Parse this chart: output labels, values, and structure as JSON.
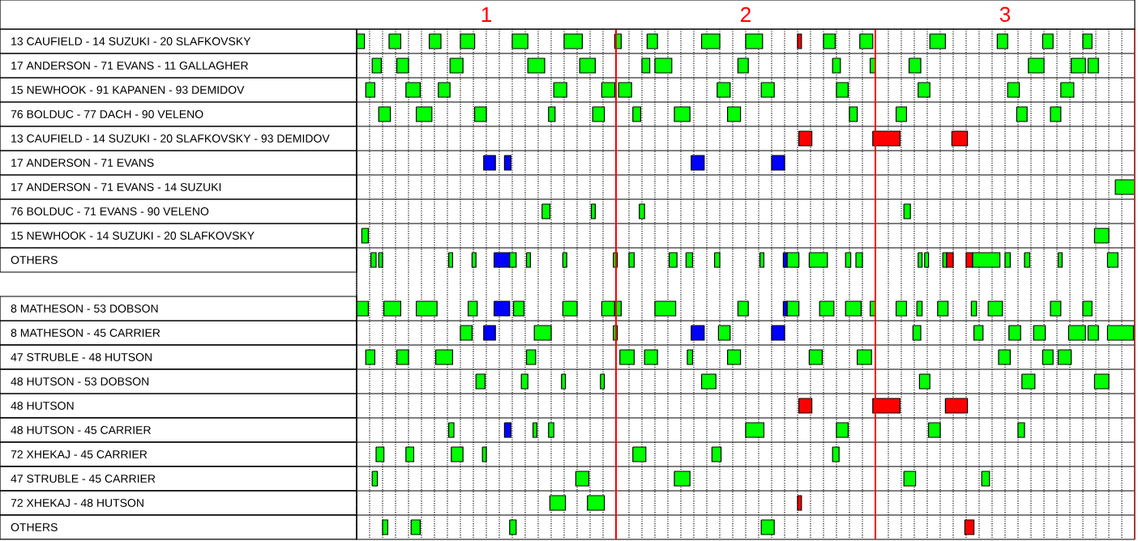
{
  "chart_data": {
    "type": "bar",
    "orientation": "horizontal",
    "grid": "x",
    "xlim": [
      0.5,
      3.5
    ],
    "categories": [
      "13 CAUFIELD - 14 SUZUKI - 20 SLAFKOVSKY",
      "17 ANDERSON - 71 EVANS - 11 GALLAGHER",
      "15 NEWHOOK - 91 KAPANEN - 93 DEMIDOV",
      "76 BOLDUC - 77 DACH - 90 VELENO",
      "13 CAUFIELD - 14 SUZUKI - 20 SLAFKOVSKY - 93 DEMIDOV",
      "17 ANDERSON - 71 EVANS",
      "17 ANDERSON - 71 EVANS - 14 SUZUKI",
      "76 BOLDUC - 71 EVANS - 90 VELENO",
      "15 NEWHOOK - 14 SUZUKI - 20 SLAFKOVSKY",
      "OTHERS",
      null,
      "8 MATHESON - 53 DOBSON",
      "8 MATHESON - 45 CARRIER",
      "47 STRUBLE - 48 HUTSON",
      "48 HUTSON - 53 DOBSON",
      "48 HUTSON",
      "48 HUTSON - 45 CARRIER",
      "72 XHEKAJ - 45 CARRIER",
      "47 STRUBLE - 45 CARRIER",
      "72 XHEKAJ - 48 HUTSON",
      "OTHERS"
    ],
    "xticks": [
      {
        "value": 0.5,
        "label": null
      },
      {
        "value": 0.55,
        "label": null
      },
      {
        "value": 0.6,
        "label": null
      },
      {
        "value": 0.65,
        "label": null
      },
      {
        "value": 0.7,
        "label": null
      },
      {
        "value": 0.75,
        "label": null
      },
      {
        "value": 0.8,
        "label": null
      },
      {
        "value": 0.85,
        "label": null
      },
      {
        "value": 0.9,
        "label": null
      },
      {
        "value": 0.95,
        "label": null
      },
      1,
      {
        "value": 1.05,
        "label": null
      },
      {
        "value": 1.1,
        "label": null
      },
      {
        "value": 1.15,
        "label": null
      },
      {
        "value": 1.2,
        "label": null
      },
      {
        "value": 1.25,
        "label": null
      },
      {
        "value": 1.3,
        "label": null
      },
      {
        "value": 1.35,
        "label": null
      },
      {
        "value": 1.4,
        "label": null
      },
      {
        "value": 1.45,
        "label": null
      },
      {
        "value": 1.55,
        "label": null
      },
      {
        "value": 1.6,
        "label": null
      },
      {
        "value": 1.65,
        "label": null
      },
      {
        "value": 1.7,
        "label": null
      },
      {
        "value": 1.75,
        "label": null
      },
      {
        "value": 1.8,
        "label": null
      },
      {
        "value": 1.85,
        "label": null
      },
      {
        "value": 1.9,
        "label": null
      },
      {
        "value": 1.95,
        "label": null
      },
      2,
      {
        "value": 2.05,
        "label": null
      },
      {
        "value": 2.1,
        "label": null
      },
      {
        "value": 2.15,
        "label": null
      },
      {
        "value": 2.2,
        "label": null
      },
      {
        "value": 2.25,
        "label": null
      },
      {
        "value": 2.3,
        "label": null
      },
      {
        "value": 2.35,
        "label": null
      },
      {
        "value": 2.4,
        "label": null
      },
      {
        "value": 2.45,
        "label": null
      },
      {
        "value": 2.55,
        "label": null
      },
      {
        "value": 2.6,
        "label": null
      },
      {
        "value": 2.65,
        "label": null
      },
      {
        "value": 2.7,
        "label": null
      },
      {
        "value": 2.75,
        "label": null
      },
      {
        "value": 2.8,
        "label": null
      },
      {
        "value": 2.85,
        "label": null
      },
      {
        "value": 2.9,
        "label": null
      },
      {
        "value": 2.95,
        "label": null
      },
      3,
      {
        "value": 3.05,
        "label": null
      },
      {
        "value": 3.1,
        "label": null
      },
      {
        "value": 3.15,
        "label": null
      },
      {
        "value": 3.2,
        "label": null
      },
      {
        "value": 3.25,
        "label": null
      },
      {
        "value": 3.3,
        "label": null
      },
      {
        "value": 3.35,
        "label": null
      },
      {
        "value": 3.4,
        "label": null
      },
      {
        "value": 3.45,
        "label": null
      }
    ],
    "ref_lines": [
      {
        "axis": "x",
        "value": 1.5,
        "color": "#ff0000"
      },
      {
        "axis": "x",
        "value": 2.5,
        "color": "#ff0000"
      },
      {
        "axis": "x",
        "value": 3.5,
        "color": "#ff0000"
      }
    ],
    "series": [
      {
        "values": [
          0.03,
          0.035,
          0.035,
          0.045,
          0.05,
          0.045,
          0.075,
          0.03,
          0.025,
          0.02,
          null,
          0.045,
          0.045,
          0.035,
          0.035,
          0.05,
          0.02,
          0.03,
          0.02,
          0.06,
          0.02
        ],
        "base": [
          0.5,
          0.56,
          0.535,
          0.585,
          2.205,
          0.99,
          3.425,
          1.215,
          0.52,
          0.555,
          null,
          0.5,
          0.9,
          0.535,
          0.96,
          2.205,
          0.855,
          0.575,
          0.56,
          1.245,
          0.6
        ],
        "colors": [
          "#00ff00",
          "#00ff00",
          "#00ff00",
          "#00ff00",
          "#ff0000",
          "#0000ff",
          "#00ff00",
          "#00ff00",
          "#00ff00",
          "#00ff00",
          null,
          "#00ff00",
          "#00ff00",
          "#00ff00",
          "#00ff00",
          "#ff0000",
          "#00ff00",
          "#00ff00",
          "#00ff00",
          "#00ff00",
          "#00ff00"
        ]
      },
      {
        "values": [
          0.045,
          0.045,
          0.055,
          0.06,
          0.105,
          0.025,
          null,
          0.015,
          0.055,
          0.015,
          null,
          0.065,
          0.045,
          0.045,
          0.025,
          0.105,
          0.025,
          0.03,
          0.05,
          0.065,
          0.035
        ],
        "base": [
          0.625,
          0.655,
          0.69,
          0.73,
          2.49,
          1.07,
          null,
          1.405,
          3.345,
          0.585,
          null,
          0.605,
          0.99,
          0.655,
          1.135,
          2.49,
          1.07,
          0.69,
          1.345,
          1.39,
          0.71
        ],
        "colors": [
          "#00ff00",
          "#00ff00",
          "#00ff00",
          "#00ff00",
          "#ff0000",
          "#0000ff",
          null,
          "#00ff00",
          "#00ff00",
          "#00ff00",
          null,
          "#00ff00",
          "#0000ff",
          "#00ff00",
          "#00ff00",
          "#ff0000",
          "#0000ff",
          "#00ff00",
          "#00ff00",
          "#00ff00",
          "#00ff00"
        ]
      },
      {
        "values": [
          0.045,
          0.05,
          0.045,
          0.045,
          0.06,
          0.05,
          null,
          0.02,
          null,
          0.015,
          null,
          0.08,
          0.065,
          0.065,
          0.015,
          0.085,
          0.015,
          0.045,
          0.06,
          0.015,
          0.025
        ],
        "base": [
          0.78,
          0.86,
          0.815,
          0.955,
          2.795,
          1.79,
          null,
          1.59,
          null,
          0.855,
          null,
          0.73,
          1.185,
          0.805,
          1.29,
          2.77,
          1.18,
          0.865,
          1.725,
          2.2,
          1.09
        ],
        "colors": [
          "#00ff00",
          "#00ff00",
          "#00ff00",
          "#00ff00",
          "#ff0000",
          "#0000ff",
          null,
          "#00ff00",
          null,
          "#00ff00",
          null,
          "#00ff00",
          "#00ff00",
          "#00ff00",
          "#00ff00",
          "#ff0000",
          "#00ff00",
          "#00ff00",
          "#00ff00",
          "#ff0000",
          "#00ff00"
        ]
      },
      {
        "values": [
          0.055,
          0.065,
          0.05,
          0.025,
          null,
          0.05,
          null,
          0.025,
          null,
          0.015,
          null,
          0.035,
          0.015,
          0.035,
          0.015,
          null,
          0.02,
          0.015,
          0.045,
          null,
          0.05
        ],
        "base": [
          0.9,
          1.16,
          1.26,
          1.24,
          null,
          2.1,
          null,
          2.61,
          null,
          0.945,
          null,
          0.93,
          1.49,
          1.155,
          1.44,
          null,
          1.24,
          0.985,
          2.61,
          null,
          2.06
        ],
        "colors": [
          "#00ff00",
          "#00ff00",
          "#00ff00",
          "#00ff00",
          null,
          "#0000ff",
          null,
          "#00ff00",
          null,
          "#00ff00",
          null,
          "#00ff00",
          "#00ff00",
          "#00ff00",
          "#00ff00",
          null,
          "#00ff00",
          "#00ff00",
          "#00ff00",
          null,
          "#00ff00"
        ]
      },
      {
        "values": [
          0.06,
          0.06,
          0.05,
          0.045,
          null,
          null,
          null,
          null,
          null,
          0.06,
          null,
          0.06,
          0.05,
          0.055,
          0.055,
          null,
          0.07,
          0.05,
          0.03,
          null,
          0.035
        ],
        "base": [
          1.1,
          1.36,
          1.445,
          1.41,
          null,
          null,
          null,
          null,
          null,
          1.03,
          null,
          1.03,
          1.79,
          1.515,
          1.83,
          null,
          2.0,
          1.565,
          2.91,
          null,
          2.845
        ],
        "colors": [
          "#00ff00",
          "#00ff00",
          "#00ff00",
          "#00ff00",
          null,
          null,
          null,
          null,
          null,
          "#0000ff",
          null,
          "#0000ff",
          "#0000ff",
          "#00ff00",
          "#00ff00",
          null,
          "#00ff00",
          "#00ff00",
          "#00ff00",
          null,
          "#ff0000"
        ]
      },
      {
        "values": [
          0.07,
          0.03,
          0.05,
          0.03,
          null,
          null,
          null,
          null,
          null,
          0.025,
          null,
          0.04,
          0.045,
          0.05,
          0.04,
          null,
          0.045,
          0.035,
          null,
          null,
          null
        ],
        "base": [
          1.3,
          1.6,
          1.51,
          1.565,
          null,
          null,
          null,
          null,
          null,
          1.09,
          null,
          1.105,
          1.895,
          1.61,
          2.67,
          null,
          2.35,
          1.87,
          null,
          null,
          null
        ],
        "colors": [
          "#00ff00",
          "#00ff00",
          "#00ff00",
          "#00ff00",
          null,
          null,
          null,
          null,
          null,
          "#00ff00",
          null,
          "#00ff00",
          "#00ff00",
          "#00ff00",
          "#00ff00",
          null,
          "#00ff00",
          "#00ff00",
          null,
          null,
          null
        ]
      },
      {
        "values": [
          0.025,
          0.065,
          0.05,
          0.06,
          null,
          null,
          null,
          null,
          null,
          0.015,
          null,
          0.055,
          0.05,
          0.02,
          0.05,
          null,
          0.045,
          0.025,
          null,
          null,
          null
        ],
        "base": [
          1.495,
          1.65,
          1.89,
          1.725,
          null,
          null,
          null,
          null,
          null,
          1.155,
          null,
          1.295,
          2.1,
          1.775,
          3.065,
          null,
          2.705,
          2.335,
          null,
          null,
          null
        ],
        "colors": [
          "#00ff00",
          "#00ff00",
          "#00ff00",
          "#00ff00",
          null,
          null,
          null,
          null,
          null,
          "#00ff00",
          null,
          "#00ff00",
          "#0000ff",
          "#00ff00",
          "#00ff00",
          null,
          "#00ff00",
          "#00ff00",
          null,
          null,
          null
        ]
      },
      {
        "values": [
          0.04,
          0.04,
          0.05,
          0.05,
          null,
          null,
          null,
          null,
          null,
          0.015,
          null,
          0.05,
          0.03,
          0.05,
          0.055,
          null,
          0.025,
          null,
          null,
          null,
          null
        ],
        "base": [
          1.62,
          1.97,
          2.06,
          1.93,
          null,
          null,
          null,
          null,
          null,
          1.295,
          null,
          1.445,
          2.645,
          1.93,
          3.345,
          null,
          3.05,
          null,
          null,
          null,
          null
        ],
        "colors": [
          "#00ff00",
          "#00ff00",
          "#00ff00",
          "#00ff00",
          null,
          null,
          null,
          null,
          null,
          "#00ff00",
          null,
          "#00ff00",
          "#00ff00",
          "#00ff00",
          "#00ff00",
          null,
          "#00ff00",
          null,
          null,
          null,
          null
        ]
      },
      {
        "values": [
          0.07,
          0.03,
          0.045,
          0.03,
          null,
          null,
          null,
          null,
          null,
          0.015,
          null,
          0.025,
          0.035,
          0.05,
          null,
          null,
          null,
          null,
          null,
          null,
          null
        ],
        "base": [
          1.83,
          2.335,
          2.35,
          2.4,
          null,
          null,
          null,
          null,
          null,
          1.49,
          null,
          1.495,
          2.88,
          2.245,
          null,
          null,
          null,
          null,
          null,
          null,
          null
        ],
        "colors": [
          "#00ff00",
          "#00ff00",
          "#00ff00",
          "#00ff00",
          null,
          null,
          null,
          null,
          null,
          "#00ff00",
          null,
          "#00ff00",
          "#00ff00",
          "#00ff00",
          null,
          null,
          null,
          null,
          null,
          null,
          null
        ]
      },
      {
        "values": [
          0.065,
          0.02,
          0.045,
          0.04,
          null,
          null,
          null,
          null,
          null,
          0.02,
          null,
          0.08,
          0.045,
          0.055,
          null,
          null,
          null,
          null,
          null,
          null,
          null
        ],
        "base": [
          2.0,
          2.48,
          2.665,
          2.58,
          null,
          null,
          null,
          null,
          null,
          1.55,
          null,
          1.65,
          3.015,
          2.43,
          null,
          null,
          null,
          null,
          null,
          null,
          null
        ],
        "colors": [
          "#00ff00",
          "#00ff00",
          "#00ff00",
          "#00ff00",
          null,
          null,
          null,
          null,
          null,
          "#00ff00",
          null,
          "#00ff00",
          "#00ff00",
          "#00ff00",
          null,
          null,
          null,
          null,
          null,
          null,
          null
        ]
      },
      {
        "values": [
          0.015,
          0.045,
          0.045,
          0.04,
          null,
          null,
          null,
          null,
          null,
          0.03,
          null,
          0.04,
          0.045,
          0.045,
          null,
          null,
          null,
          null,
          null,
          null,
          null
        ],
        "base": [
          2.2,
          2.63,
          3.01,
          3.045,
          null,
          null,
          null,
          null,
          null,
          1.705,
          null,
          1.97,
          3.11,
          2.975,
          null,
          null,
          null,
          null,
          null,
          null,
          null
        ],
        "colors": [
          "#ff0000",
          "#00ff00",
          "#00ff00",
          "#00ff00",
          null,
          null,
          null,
          null,
          null,
          "#00ff00",
          null,
          "#00ff00",
          "#00ff00",
          "#00ff00",
          null,
          null,
          null,
          null,
          null,
          null,
          null
        ]
      },
      {
        "values": [
          0.045,
          0.06,
          0.05,
          0.04,
          null,
          null,
          null,
          null,
          null,
          0.025,
          null,
          0.015,
          0.065,
          0.04,
          null,
          null,
          null,
          null,
          null,
          null,
          null
        ],
        "base": [
          2.3,
          3.09,
          3.215,
          3.175,
          null,
          null,
          null,
          null,
          null,
          1.77,
          null,
          2.145,
          3.245,
          3.145,
          null,
          null,
          null,
          null,
          null,
          null,
          null
        ],
        "colors": [
          "#00ff00",
          "#00ff00",
          "#00ff00",
          "#00ff00",
          null,
          null,
          null,
          null,
          null,
          "#00ff00",
          null,
          "#0000ff",
          "#00ff00",
          "#00ff00",
          null,
          null,
          null,
          null,
          null,
          null,
          null
        ]
      },
      {
        "values": [
          0.05,
          0.055,
          null,
          null,
          null,
          null,
          null,
          null,
          null,
          0.02,
          null,
          0.045,
          0.04,
          0.05,
          null,
          null,
          null,
          null,
          null,
          null,
          null
        ],
        "base": [
          2.44,
          3.255,
          null,
          null,
          null,
          null,
          null,
          null,
          null,
          1.88,
          null,
          2.16,
          3.32,
          3.205,
          null,
          null,
          null,
          null,
          null,
          null,
          null
        ],
        "colors": [
          "#00ff00",
          "#00ff00",
          null,
          null,
          null,
          null,
          null,
          null,
          null,
          "#00ff00",
          null,
          "#00ff00",
          "#00ff00",
          "#00ff00",
          null,
          null,
          null,
          null,
          null,
          null,
          null
        ]
      },
      {
        "values": [
          0.06,
          0.04,
          null,
          null,
          null,
          null,
          null,
          null,
          null,
          0.015,
          null,
          0.055,
          0.1,
          null,
          null,
          null,
          null,
          null,
          null,
          null,
          null
        ],
        "base": [
          2.71,
          3.32,
          null,
          null,
          null,
          null,
          null,
          null,
          null,
          2.055,
          null,
          2.285,
          3.395,
          null,
          null,
          null,
          null,
          null,
          null,
          null,
          null
        ],
        "colors": [
          "#00ff00",
          "#00ff00",
          null,
          null,
          null,
          null,
          null,
          null,
          null,
          "#00ff00",
          null,
          "#00ff00",
          "#00ff00",
          null,
          null,
          null,
          null,
          null,
          null,
          null,
          null
        ]
      },
      {
        "values": [
          0.04,
          null,
          null,
          null,
          null,
          null,
          null,
          null,
          null,
          0.015,
          null,
          0.06,
          null,
          null,
          null,
          null,
          null,
          null,
          null,
          null,
          null
        ],
        "base": [
          2.97,
          null,
          null,
          null,
          null,
          null,
          null,
          null,
          null,
          2.145,
          null,
          2.385,
          null,
          null,
          null,
          null,
          null,
          null,
          null,
          null,
          null
        ],
        "colors": [
          "#00ff00",
          null,
          null,
          null,
          null,
          null,
          null,
          null,
          null,
          "#0000ff",
          null,
          "#00ff00",
          null,
          null,
          null,
          null,
          null,
          null,
          null,
          null,
          null
        ]
      },
      {
        "values": [
          0.04,
          null,
          null,
          null,
          null,
          null,
          null,
          null,
          null,
          0.045,
          null,
          0.02,
          null,
          null,
          null,
          null,
          null,
          null,
          null,
          null,
          null
        ],
        "base": [
          3.145,
          null,
          null,
          null,
          null,
          null,
          null,
          null,
          null,
          2.16,
          null,
          2.48,
          null,
          null,
          null,
          null,
          null,
          null,
          null,
          null,
          null
        ],
        "colors": [
          "#00ff00",
          null,
          null,
          null,
          null,
          null,
          null,
          null,
          null,
          "#00ff00",
          null,
          "#00ff00",
          null,
          null,
          null,
          null,
          null,
          null,
          null,
          null,
          null
        ]
      },
      {
        "values": [
          0.035,
          null,
          null,
          null,
          null,
          null,
          null,
          null,
          null,
          0.07,
          null,
          0.04,
          null,
          null,
          null,
          null,
          null,
          null,
          null,
          null,
          null
        ],
        "base": [
          3.3,
          null,
          null,
          null,
          null,
          null,
          null,
          null,
          null,
          2.245,
          null,
          2.58,
          null,
          null,
          null,
          null,
          null,
          null,
          null,
          null,
          null
        ],
        "colors": [
          "#00ff00",
          null,
          null,
          null,
          null,
          null,
          null,
          null,
          null,
          "#00ff00",
          null,
          "#00ff00",
          null,
          null,
          null,
          null,
          null,
          null,
          null,
          null,
          null
        ]
      },
      {
        "values": [
          null,
          null,
          null,
          null,
          null,
          null,
          null,
          null,
          null,
          0.02,
          null,
          0.02,
          null,
          null,
          null,
          null,
          null,
          null,
          null,
          null,
          null
        ],
        "base": [
          null,
          null,
          null,
          null,
          null,
          null,
          null,
          null,
          null,
          2.385,
          null,
          2.66,
          null,
          null,
          null,
          null,
          null,
          null,
          null,
          null,
          null
        ],
        "colors": [
          null,
          null,
          null,
          null,
          null,
          null,
          null,
          null,
          null,
          "#00ff00",
          null,
          "#00ff00",
          null,
          null,
          null,
          null,
          null,
          null,
          null,
          null,
          null
        ]
      },
      {
        "values": [
          null,
          null,
          null,
          null,
          null,
          null,
          null,
          null,
          null,
          0.025,
          null,
          0.04,
          null,
          null,
          null,
          null,
          null,
          null,
          null,
          null,
          null
        ],
        "base": [
          null,
          null,
          null,
          null,
          null,
          null,
          null,
          null,
          null,
          2.425,
          null,
          2.74,
          null,
          null,
          null,
          null,
          null,
          null,
          null,
          null,
          null
        ],
        "colors": [
          null,
          null,
          null,
          null,
          null,
          null,
          null,
          null,
          null,
          "#00ff00",
          null,
          "#00ff00",
          null,
          null,
          null,
          null,
          null,
          null,
          null,
          null,
          null
        ]
      },
      {
        "values": [
          null,
          null,
          null,
          null,
          null,
          null,
          null,
          null,
          null,
          0.015,
          null,
          0.02,
          null,
          null,
          null,
          null,
          null,
          null,
          null,
          null,
          null
        ],
        "base": [
          null,
          null,
          null,
          null,
          null,
          null,
          null,
          null,
          null,
          2.665,
          null,
          2.87,
          null,
          null,
          null,
          null,
          null,
          null,
          null,
          null,
          null
        ],
        "colors": [
          null,
          null,
          null,
          null,
          null,
          null,
          null,
          null,
          null,
          "#00ff00",
          null,
          "#00ff00",
          null,
          null,
          null,
          null,
          null,
          null,
          null,
          null,
          null
        ]
      },
      {
        "values": [
          null,
          null,
          null,
          null,
          null,
          null,
          null,
          null,
          null,
          0.015,
          null,
          0.055,
          null,
          null,
          null,
          null,
          null,
          null,
          null,
          null,
          null
        ],
        "base": [
          null,
          null,
          null,
          null,
          null,
          null,
          null,
          null,
          null,
          2.69,
          null,
          2.935,
          null,
          null,
          null,
          null,
          null,
          null,
          null,
          null,
          null
        ],
        "colors": [
          null,
          null,
          null,
          null,
          null,
          null,
          null,
          null,
          null,
          "#00ff00",
          null,
          "#00ff00",
          null,
          null,
          null,
          null,
          null,
          null,
          null,
          null,
          null
        ]
      },
      {
        "values": [
          null,
          null,
          null,
          null,
          null,
          null,
          null,
          null,
          null,
          0.015,
          null,
          0.04,
          null,
          null,
          null,
          null,
          null,
          null,
          null,
          null,
          null
        ],
        "base": [
          null,
          null,
          null,
          null,
          null,
          null,
          null,
          null,
          null,
          2.76,
          null,
          3.175,
          null,
          null,
          null,
          null,
          null,
          null,
          null,
          null,
          null
        ],
        "colors": [
          null,
          null,
          null,
          null,
          null,
          null,
          null,
          null,
          null,
          "#00ff00",
          null,
          "#00ff00",
          null,
          null,
          null,
          null,
          null,
          null,
          null,
          null,
          null
        ]
      },
      {
        "values": [
          null,
          null,
          null,
          null,
          null,
          null,
          null,
          null,
          null,
          0.025,
          null,
          0.035,
          null,
          null,
          null,
          null,
          null,
          null,
          null,
          null,
          null
        ],
        "base": [
          null,
          null,
          null,
          null,
          null,
          null,
          null,
          null,
          null,
          2.775,
          null,
          3.3,
          null,
          null,
          null,
          null,
          null,
          null,
          null,
          null,
          null
        ],
        "colors": [
          null,
          null,
          null,
          null,
          null,
          null,
          null,
          null,
          null,
          "#ff0000",
          null,
          "#00ff00",
          null,
          null,
          null,
          null,
          null,
          null,
          null,
          null,
          null
        ]
      },
      {
        "values": [
          null,
          null,
          null,
          null,
          null,
          null,
          null,
          null,
          null,
          0.025,
          null,
          null,
          null,
          null,
          null,
          null,
          null,
          null,
          null,
          null,
          null
        ],
        "base": [
          null,
          null,
          null,
          null,
          null,
          null,
          null,
          null,
          null,
          2.85,
          null,
          null,
          null,
          null,
          null,
          null,
          null,
          null,
          null,
          null,
          null
        ],
        "colors": [
          null,
          null,
          null,
          null,
          null,
          null,
          null,
          null,
          null,
          "#ff0000",
          null,
          null,
          null,
          null,
          null,
          null,
          null,
          null,
          null,
          null,
          null
        ]
      },
      {
        "values": [
          null,
          null,
          null,
          null,
          null,
          null,
          null,
          null,
          null,
          0.105,
          null,
          null,
          null,
          null,
          null,
          null,
          null,
          null,
          null,
          null,
          null
        ],
        "base": [
          null,
          null,
          null,
          null,
          null,
          null,
          null,
          null,
          null,
          2.875,
          null,
          null,
          null,
          null,
          null,
          null,
          null,
          null,
          null,
          null,
          null
        ],
        "colors": [
          null,
          null,
          null,
          null,
          null,
          null,
          null,
          null,
          null,
          "#00ff00",
          null,
          null,
          null,
          null,
          null,
          null,
          null,
          null,
          null,
          null,
          null
        ]
      },
      {
        "values": [
          null,
          null,
          null,
          null,
          null,
          null,
          null,
          null,
          null,
          0.02,
          null,
          null,
          null,
          null,
          null,
          null,
          null,
          null,
          null,
          null,
          null
        ],
        "base": [
          null,
          null,
          null,
          null,
          null,
          null,
          null,
          null,
          null,
          3.0,
          null,
          null,
          null,
          null,
          null,
          null,
          null,
          null,
          null,
          null,
          null
        ],
        "colors": [
          null,
          null,
          null,
          null,
          null,
          null,
          null,
          null,
          null,
          "#00ff00",
          null,
          null,
          null,
          null,
          null,
          null,
          null,
          null,
          null,
          null,
          null
        ]
      },
      {
        "values": [
          null,
          null,
          null,
          null,
          null,
          null,
          null,
          null,
          null,
          0.02,
          null,
          null,
          null,
          null,
          null,
          null,
          null,
          null,
          null,
          null,
          null
        ],
        "base": [
          null,
          null,
          null,
          null,
          null,
          null,
          null,
          null,
          null,
          3.075,
          null,
          null,
          null,
          null,
          null,
          null,
          null,
          null,
          null,
          null,
          null
        ],
        "colors": [
          null,
          null,
          null,
          null,
          null,
          null,
          null,
          null,
          null,
          "#00ff00",
          null,
          null,
          null,
          null,
          null,
          null,
          null,
          null,
          null,
          null,
          null
        ]
      },
      {
        "values": [
          null,
          null,
          null,
          null,
          null,
          null,
          null,
          null,
          null,
          0.015,
          null,
          null,
          null,
          null,
          null,
          null,
          null,
          null,
          null,
          null,
          null
        ],
        "base": [
          null,
          null,
          null,
          null,
          null,
          null,
          null,
          null,
          null,
          3.205,
          null,
          null,
          null,
          null,
          null,
          null,
          null,
          null,
          null,
          null,
          null
        ],
        "colors": [
          null,
          null,
          null,
          null,
          null,
          null,
          null,
          null,
          null,
          "#00ff00",
          null,
          null,
          null,
          null,
          null,
          null,
          null,
          null,
          null,
          null,
          null
        ]
      },
      {
        "values": [
          null,
          null,
          null,
          null,
          null,
          null,
          null,
          null,
          null,
          0.04,
          null,
          null,
          null,
          null,
          null,
          null,
          null,
          null,
          null,
          null,
          null
        ],
        "base": [
          null,
          null,
          null,
          null,
          null,
          null,
          null,
          null,
          null,
          3.395,
          null,
          null,
          null,
          null,
          null,
          null,
          null,
          null,
          null,
          null,
          null
        ],
        "colors": [
          null,
          null,
          null,
          null,
          null,
          null,
          null,
          null,
          null,
          "#00ff00",
          null,
          null,
          null,
          null,
          null,
          null,
          null,
          null,
          null,
          null,
          null
        ]
      }
    ]
  }
}
